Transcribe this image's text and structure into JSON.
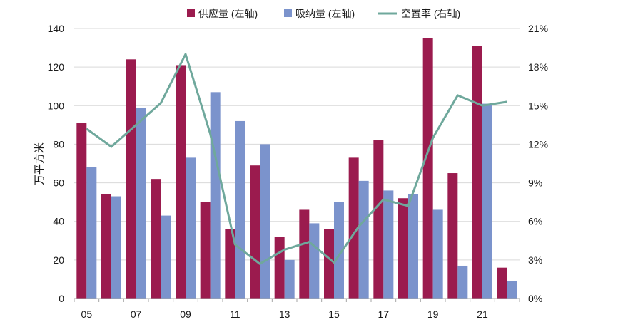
{
  "chart_data": {
    "type": "bar",
    "ylabel": "万平方米",
    "ylim": [
      0,
      140
    ],
    "y_ticks": [
      0,
      20,
      40,
      60,
      80,
      100,
      120,
      140
    ],
    "y2lim": [
      0,
      21
    ],
    "y2_ticks": [
      "0%",
      "3%",
      "6%",
      "9%",
      "12%",
      "15%",
      "18%",
      "21%"
    ],
    "grid": true,
    "legend_position": "top",
    "categories": [
      "05",
      "06",
      "07",
      "08",
      "09",
      "10",
      "11",
      "12",
      "13",
      "14",
      "15",
      "16",
      "17",
      "18",
      "19",
      "20",
      "21",
      "22"
    ],
    "x_tick_labels": [
      "05",
      "07",
      "09",
      "11",
      "13",
      "15",
      "17",
      "19",
      "21"
    ],
    "series": [
      {
        "name": "供应量 (左轴)",
        "type": "bar",
        "axis": "left",
        "color": "#9b1b4e",
        "values": [
          91,
          54,
          124,
          62,
          121,
          50,
          36,
          69,
          32,
          46,
          36,
          73,
          82,
          52,
          135,
          65,
          131,
          16
        ]
      },
      {
        "name": "吸纳量 (左轴)",
        "type": "bar",
        "axis": "left",
        "color": "#7b93cc",
        "values": [
          68,
          53,
          99,
          43,
          73,
          107,
          92,
          80,
          20,
          39,
          50,
          61,
          56,
          54,
          46,
          17,
          101,
          9
        ]
      },
      {
        "name": "空置率 (右轴)",
        "type": "line",
        "axis": "right",
        "color": "#6fa89c",
        "values": [
          13.2,
          11.8,
          13.5,
          15.2,
          19.0,
          12.8,
          4.2,
          2.7,
          3.8,
          4.4,
          2.8,
          5.6,
          7.7,
          7.2,
          12.5,
          15.8,
          15.0,
          15.3
        ]
      }
    ]
  }
}
